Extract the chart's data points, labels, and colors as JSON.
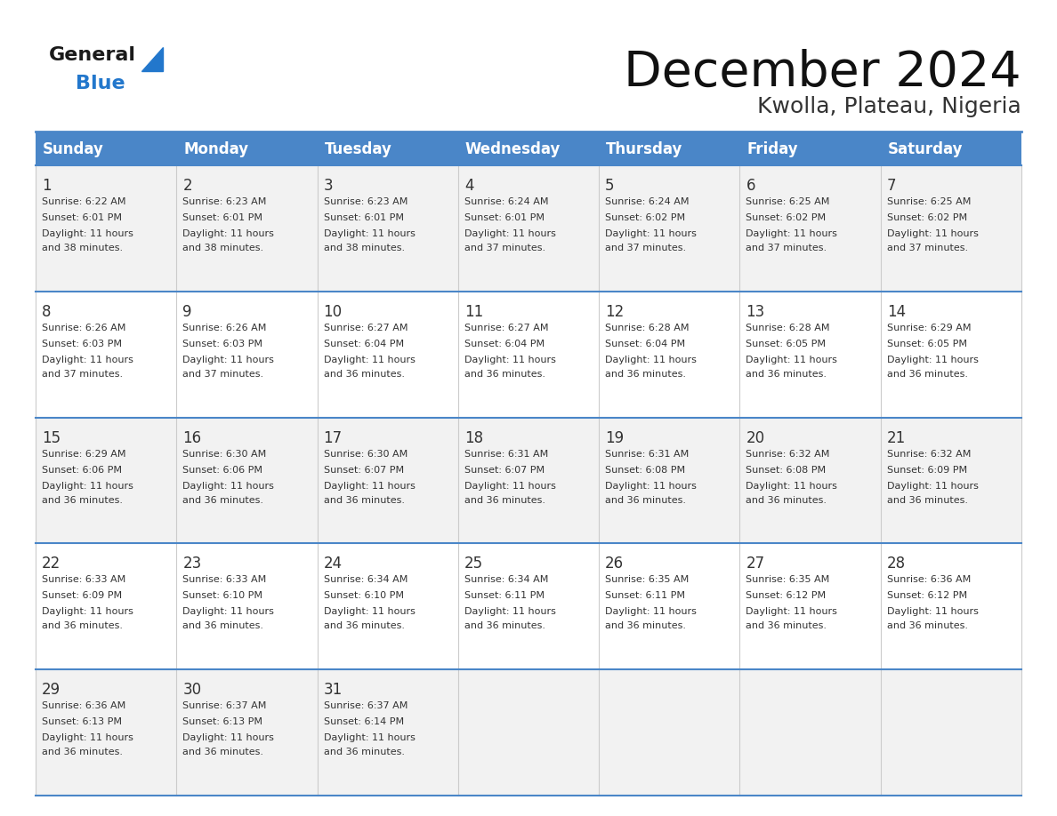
{
  "title": "December 2024",
  "subtitle": "Kwolla, Plateau, Nigeria",
  "header_bg_color": "#4a86c8",
  "header_text_color": "#ffffff",
  "cell_bg_color_odd": "#f2f2f2",
  "cell_bg_color_even": "#ffffff",
  "border_color": "#4a86c8",
  "text_color": "#333333",
  "days_of_week": [
    "Sunday",
    "Monday",
    "Tuesday",
    "Wednesday",
    "Thursday",
    "Friday",
    "Saturday"
  ],
  "calendar_data": [
    [
      {
        "day": 1,
        "sunrise": "6:22 AM",
        "sunset": "6:01 PM",
        "daylight": "11 hours and 38 minutes."
      },
      {
        "day": 2,
        "sunrise": "6:23 AM",
        "sunset": "6:01 PM",
        "daylight": "11 hours and 38 minutes."
      },
      {
        "day": 3,
        "sunrise": "6:23 AM",
        "sunset": "6:01 PM",
        "daylight": "11 hours and 38 minutes."
      },
      {
        "day": 4,
        "sunrise": "6:24 AM",
        "sunset": "6:01 PM",
        "daylight": "11 hours and 37 minutes."
      },
      {
        "day": 5,
        "sunrise": "6:24 AM",
        "sunset": "6:02 PM",
        "daylight": "11 hours and 37 minutes."
      },
      {
        "day": 6,
        "sunrise": "6:25 AM",
        "sunset": "6:02 PM",
        "daylight": "11 hours and 37 minutes."
      },
      {
        "day": 7,
        "sunrise": "6:25 AM",
        "sunset": "6:02 PM",
        "daylight": "11 hours and 37 minutes."
      }
    ],
    [
      {
        "day": 8,
        "sunrise": "6:26 AM",
        "sunset": "6:03 PM",
        "daylight": "11 hours and 37 minutes."
      },
      {
        "day": 9,
        "sunrise": "6:26 AM",
        "sunset": "6:03 PM",
        "daylight": "11 hours and 37 minutes."
      },
      {
        "day": 10,
        "sunrise": "6:27 AM",
        "sunset": "6:04 PM",
        "daylight": "11 hours and 36 minutes."
      },
      {
        "day": 11,
        "sunrise": "6:27 AM",
        "sunset": "6:04 PM",
        "daylight": "11 hours and 36 minutes."
      },
      {
        "day": 12,
        "sunrise": "6:28 AM",
        "sunset": "6:04 PM",
        "daylight": "11 hours and 36 minutes."
      },
      {
        "day": 13,
        "sunrise": "6:28 AM",
        "sunset": "6:05 PM",
        "daylight": "11 hours and 36 minutes."
      },
      {
        "day": 14,
        "sunrise": "6:29 AM",
        "sunset": "6:05 PM",
        "daylight": "11 hours and 36 minutes."
      }
    ],
    [
      {
        "day": 15,
        "sunrise": "6:29 AM",
        "sunset": "6:06 PM",
        "daylight": "11 hours and 36 minutes."
      },
      {
        "day": 16,
        "sunrise": "6:30 AM",
        "sunset": "6:06 PM",
        "daylight": "11 hours and 36 minutes."
      },
      {
        "day": 17,
        "sunrise": "6:30 AM",
        "sunset": "6:07 PM",
        "daylight": "11 hours and 36 minutes."
      },
      {
        "day": 18,
        "sunrise": "6:31 AM",
        "sunset": "6:07 PM",
        "daylight": "11 hours and 36 minutes."
      },
      {
        "day": 19,
        "sunrise": "6:31 AM",
        "sunset": "6:08 PM",
        "daylight": "11 hours and 36 minutes."
      },
      {
        "day": 20,
        "sunrise": "6:32 AM",
        "sunset": "6:08 PM",
        "daylight": "11 hours and 36 minutes."
      },
      {
        "day": 21,
        "sunrise": "6:32 AM",
        "sunset": "6:09 PM",
        "daylight": "11 hours and 36 minutes."
      }
    ],
    [
      {
        "day": 22,
        "sunrise": "6:33 AM",
        "sunset": "6:09 PM",
        "daylight": "11 hours and 36 minutes."
      },
      {
        "day": 23,
        "sunrise": "6:33 AM",
        "sunset": "6:10 PM",
        "daylight": "11 hours and 36 minutes."
      },
      {
        "day": 24,
        "sunrise": "6:34 AM",
        "sunset": "6:10 PM",
        "daylight": "11 hours and 36 minutes."
      },
      {
        "day": 25,
        "sunrise": "6:34 AM",
        "sunset": "6:11 PM",
        "daylight": "11 hours and 36 minutes."
      },
      {
        "day": 26,
        "sunrise": "6:35 AM",
        "sunset": "6:11 PM",
        "daylight": "11 hours and 36 minutes."
      },
      {
        "day": 27,
        "sunrise": "6:35 AM",
        "sunset": "6:12 PM",
        "daylight": "11 hours and 36 minutes."
      },
      {
        "day": 28,
        "sunrise": "6:36 AM",
        "sunset": "6:12 PM",
        "daylight": "11 hours and 36 minutes."
      }
    ],
    [
      {
        "day": 29,
        "sunrise": "6:36 AM",
        "sunset": "6:13 PM",
        "daylight": "11 hours and 36 minutes."
      },
      {
        "day": 30,
        "sunrise": "6:37 AM",
        "sunset": "6:13 PM",
        "daylight": "11 hours and 36 minutes."
      },
      {
        "day": 31,
        "sunrise": "6:37 AM",
        "sunset": "6:14 PM",
        "daylight": "11 hours and 36 minutes."
      },
      null,
      null,
      null,
      null
    ]
  ],
  "logo_general_color": "#1a1a1a",
  "logo_blue_color": "#2277cc",
  "logo_triangle_color": "#2277cc"
}
